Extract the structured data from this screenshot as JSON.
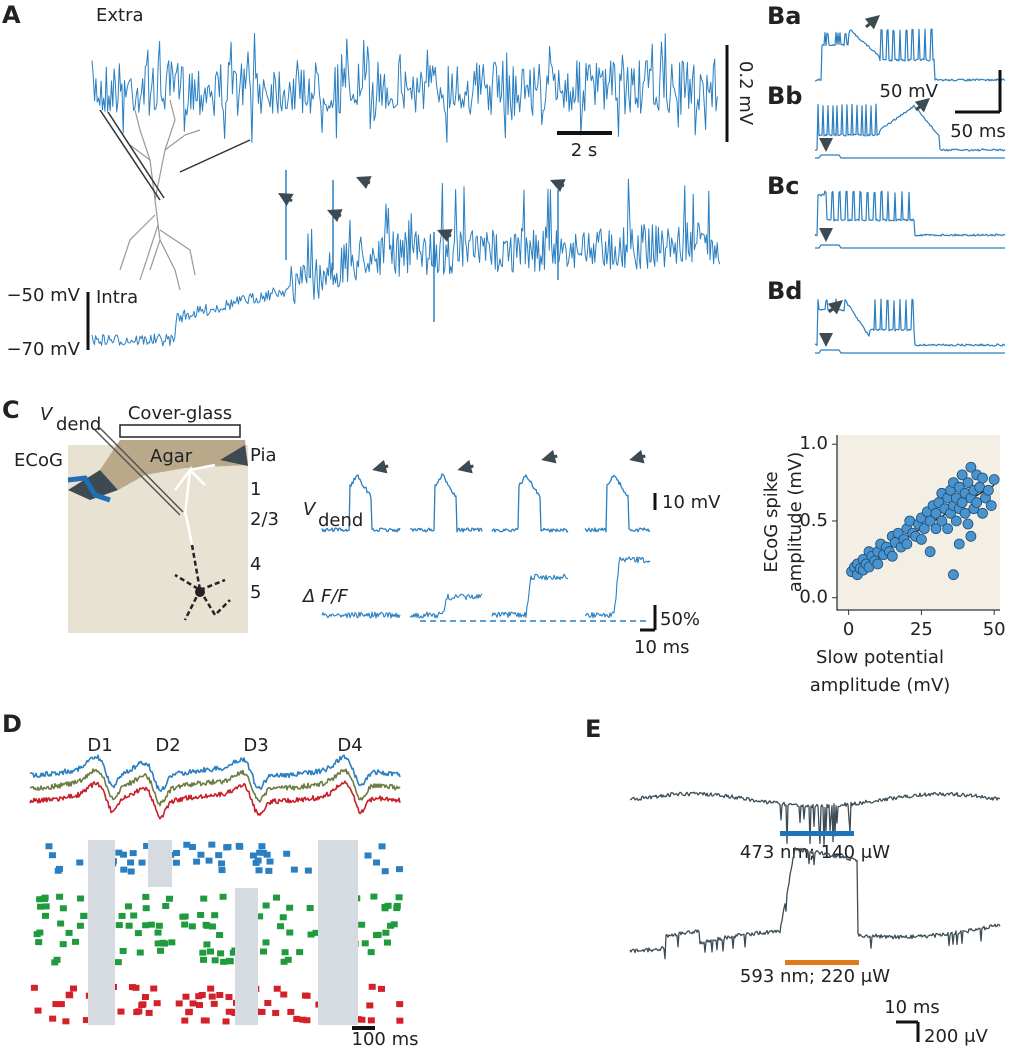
{
  "panels": {
    "A": {
      "label": "A",
      "extra": "Extra",
      "extra_scale_v": "0.2 mV",
      "extra_scale_t": "2 s",
      "intra": "Intra",
      "intra_top": "−50 mV",
      "intra_bottom": "−70 mV"
    },
    "B": {
      "labels": [
        "Ba",
        "Bb",
        "Bc",
        "Bd"
      ],
      "scale_v": "50 mV",
      "scale_t": "50 ms"
    },
    "C": {
      "label": "C",
      "v": "V",
      "v_sub": "dend",
      "cover_glass": "Cover-glass",
      "agar": "Agar",
      "ecog": "ECoG",
      "pia": "Pia",
      "layers": [
        "1",
        "2/3",
        "4",
        "5"
      ],
      "scale_v": "10 mV",
      "df": "Δ F/F",
      "scale_pct": "50%",
      "scale_t": "10 ms"
    },
    "D": {
      "label": "D",
      "events": [
        "D1",
        "D2",
        "D3",
        "D4"
      ],
      "scale_t": "100 ms"
    },
    "E": {
      "label": "E",
      "blue": "473 nm; 140 μW",
      "orange": "593 nm; 220 μW",
      "scale_t": "10 ms",
      "scale_v": "200 μV"
    }
  },
  "chart_data": {
    "type": "scatter",
    "color": "#4a93cc",
    "x_label": [
      "Slow potential",
      "amplitude (mV)"
    ],
    "y_label": [
      "ECoG  spike",
      "amplitude (mV)"
    ],
    "x": [
      1,
      2,
      3,
      3,
      4,
      5,
      5,
      6,
      7,
      7,
      8,
      9,
      10,
      10,
      11,
      12,
      13,
      14,
      15,
      15,
      16,
      17,
      18,
      19,
      20,
      20,
      21,
      22,
      23,
      24,
      25,
      25,
      26,
      27,
      28,
      28,
      29,
      30,
      30,
      31,
      32,
      32,
      33,
      34,
      34,
      35,
      35,
      36,
      36,
      37,
      37,
      38,
      38,
      39,
      39,
      40,
      40,
      41,
      41,
      42,
      42,
      43,
      43,
      44,
      44,
      45,
      46,
      46,
      47,
      48,
      49,
      50,
      36,
      38,
      42
    ],
    "values": [
      0.17,
      0.2,
      0.15,
      0.22,
      0.19,
      0.25,
      0.18,
      0.22,
      0.3,
      0.2,
      0.27,
      0.24,
      0.3,
      0.22,
      0.35,
      0.28,
      0.33,
      0.3,
      0.4,
      0.27,
      0.36,
      0.42,
      0.33,
      0.38,
      0.45,
      0.35,
      0.5,
      0.42,
      0.4,
      0.48,
      0.52,
      0.38,
      0.45,
      0.56,
      0.5,
      0.3,
      0.6,
      0.55,
      0.45,
      0.62,
      0.5,
      0.68,
      0.58,
      0.65,
      0.45,
      0.7,
      0.55,
      0.6,
      0.75,
      0.5,
      0.65,
      0.72,
      0.58,
      0.8,
      0.62,
      0.68,
      0.55,
      0.75,
      0.48,
      0.85,
      0.65,
      0.7,
      0.58,
      0.8,
      0.62,
      0.72,
      0.55,
      0.78,
      0.65,
      0.7,
      0.6,
      0.77,
      0.15,
      0.35,
      0.4
    ],
    "xlim": [
      -4,
      52
    ],
    "xticks": [
      0,
      25,
      50
    ],
    "ylim": [
      -0.08,
      1.06
    ],
    "yticks": [
      {
        "value": 0,
        "label": "0.0"
      },
      {
        "value": 0.5,
        "label": "0.5"
      },
      {
        "value": 1,
        "label": "1.0"
      }
    ]
  }
}
